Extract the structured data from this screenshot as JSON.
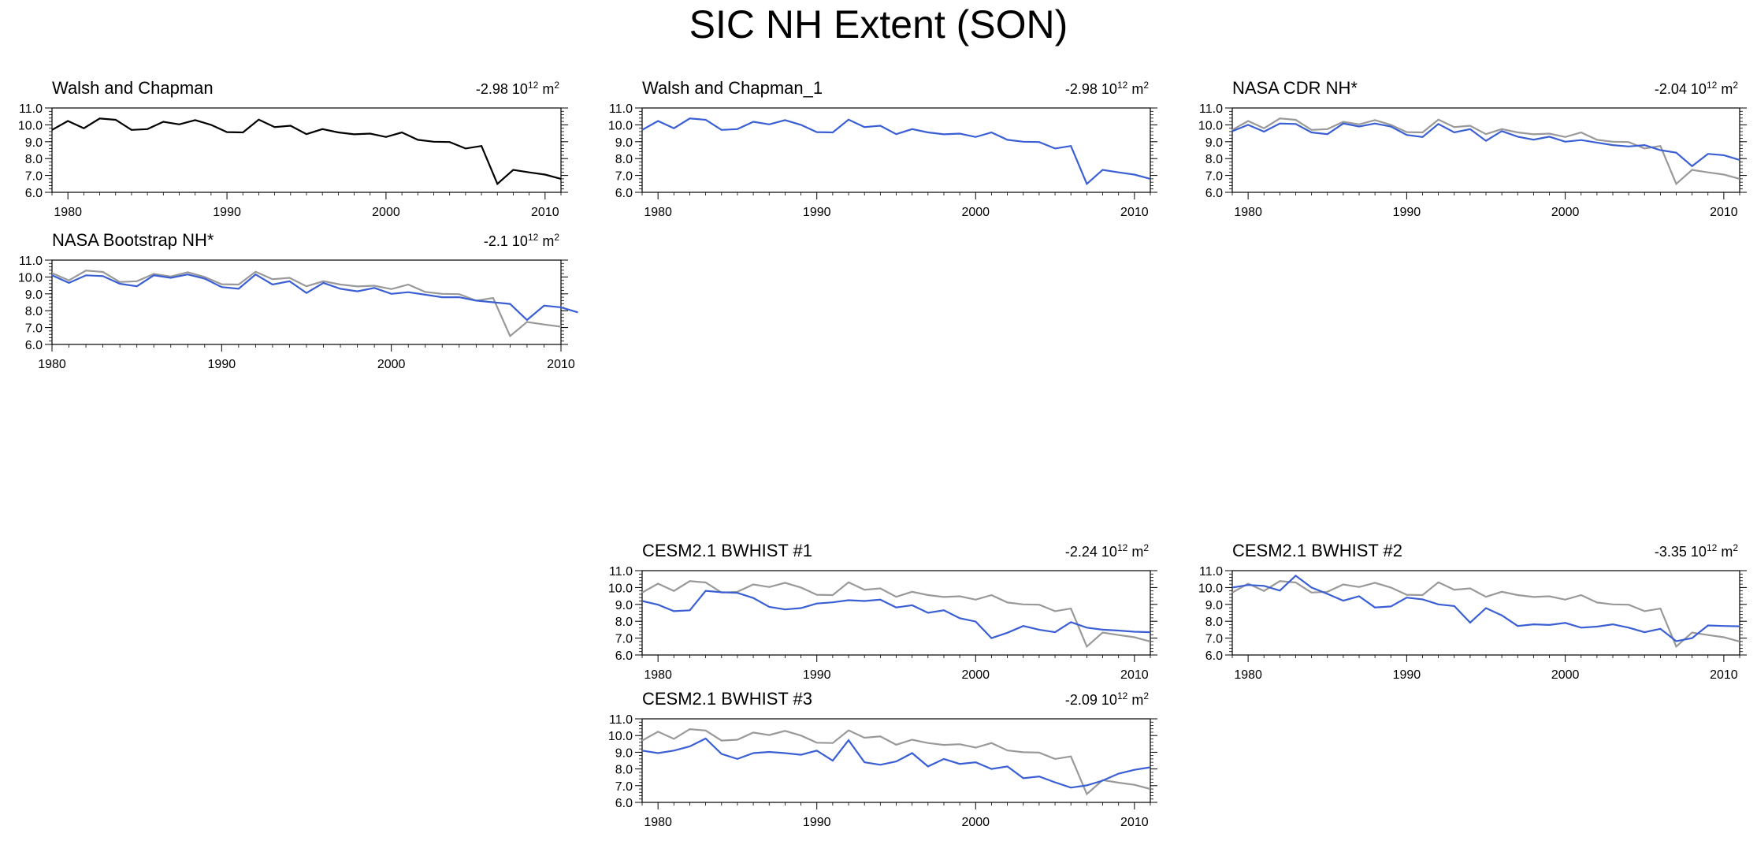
{
  "page_title": "SIC NH Extent (SON)",
  "colors": {
    "reference": "#000000",
    "observed_ref": "#999999",
    "model": "#3a5fd4"
  },
  "reference_values": [
    9.7,
    10.23,
    9.8,
    10.38,
    10.3,
    9.7,
    9.75,
    10.18,
    10.03,
    10.28,
    10.0,
    9.57,
    9.55,
    10.31,
    9.87,
    9.95,
    9.45,
    9.75,
    9.55,
    9.44,
    9.48,
    9.28,
    9.55,
    9.11,
    9.0,
    8.98,
    8.6,
    8.75,
    6.5,
    7.33,
    7.18,
    7.05,
    6.8
  ],
  "chart_data": [
    {
      "type": "line",
      "title": "Walsh and Chapman",
      "slope_value": "-2.98",
      "slope_unit_base": "10",
      "slope_exp": "12",
      "slope_unit": "m",
      "slope_unit_exp": "2",
      "x_start": 1979,
      "xlim": [
        1979,
        2011
      ],
      "ylim": [
        6.0,
        11.0
      ],
      "yticks": [
        "6.0",
        "7.0",
        "8.0",
        "9.0",
        "10.0",
        "11.0"
      ],
      "xticks": [
        "1980",
        "1990",
        "2000",
        "2010"
      ],
      "line_color": "#000000",
      "show_reference": false,
      "values_ref": "reference"
    },
    {
      "type": "line",
      "title": "Walsh and Chapman_1",
      "slope_value": "-2.98",
      "slope_unit_base": "10",
      "slope_exp": "12",
      "slope_unit": "m",
      "slope_unit_exp": "2",
      "x_start": 1979,
      "xlim": [
        1979,
        2011
      ],
      "ylim": [
        6.0,
        11.0
      ],
      "yticks": [
        "6.0",
        "7.0",
        "8.0",
        "9.0",
        "10.0",
        "11.0"
      ],
      "xticks": [
        "1980",
        "1990",
        "2000",
        "2010"
      ],
      "line_color": "#3a5fd4",
      "show_reference": false,
      "values_ref": "reference"
    },
    {
      "type": "line",
      "title": "NASA CDR NH*",
      "slope_value": "-2.04",
      "slope_unit_base": "10",
      "slope_exp": "12",
      "slope_unit": "m",
      "slope_unit_exp": "2",
      "x_start": 1979,
      "xlim": [
        1979,
        2011
      ],
      "ylim": [
        6.0,
        11.0
      ],
      "yticks": [
        "6.0",
        "7.0",
        "8.0",
        "9.0",
        "10.0",
        "11.0"
      ],
      "xticks": [
        "1980",
        "1990",
        "2000",
        "2010"
      ],
      "line_color": "#3a5fd4",
      "show_reference": true,
      "values": [
        9.62,
        10.0,
        9.6,
        10.08,
        10.05,
        9.55,
        9.45,
        10.08,
        9.9,
        10.08,
        9.9,
        9.4,
        9.28,
        10.05,
        9.55,
        9.75,
        9.05,
        9.63,
        9.3,
        9.12,
        9.3,
        9.0,
        9.1,
        8.95,
        8.8,
        8.72,
        8.8,
        8.5,
        8.35,
        7.55,
        8.28,
        8.2,
        7.92
      ]
    },
    {
      "type": "line",
      "title": "NASA Bootstrap NH*",
      "slope_value": "-2.1",
      "slope_unit_base": "10",
      "slope_exp": "12",
      "slope_unit": "m",
      "slope_unit_exp": "2",
      "x_start": 1980,
      "xlim": [
        1980,
        2010
      ],
      "ylim": [
        6.0,
        11.0
      ],
      "yticks": [
        "6.0",
        "7.0",
        "8.0",
        "9.0",
        "10.0",
        "11.0"
      ],
      "xticks": [
        "1980",
        "1990",
        "2000",
        "2010"
      ],
      "line_color": "#3a5fd4",
      "show_reference": true,
      "values": [
        10.1,
        9.65,
        10.1,
        10.05,
        9.6,
        9.45,
        10.1,
        9.95,
        10.15,
        9.9,
        9.4,
        9.3,
        10.15,
        9.55,
        9.75,
        9.05,
        9.65,
        9.3,
        9.15,
        9.35,
        9.0,
        9.1,
        8.95,
        8.8,
        8.8,
        8.6,
        8.5,
        8.4,
        7.45,
        8.3,
        8.2,
        7.9
      ]
    },
    {
      "type": "line",
      "title": "CESM2.1 BWHIST #1",
      "slope_value": "-2.24",
      "slope_unit_base": "10",
      "slope_exp": "12",
      "slope_unit": "m",
      "slope_unit_exp": "2",
      "x_start": 1979,
      "xlim": [
        1979,
        2011
      ],
      "ylim": [
        6.0,
        11.0
      ],
      "yticks": [
        "6.0",
        "7.0",
        "8.0",
        "9.0",
        "10.0",
        "11.0"
      ],
      "xticks": [
        "1980",
        "1990",
        "2000",
        "2010"
      ],
      "line_color": "#3a5fd4",
      "show_reference": true,
      "values": [
        9.2,
        8.98,
        8.6,
        8.65,
        9.8,
        9.72,
        9.68,
        9.38,
        8.85,
        8.7,
        8.78,
        9.05,
        9.12,
        9.25,
        9.2,
        9.28,
        8.82,
        8.95,
        8.5,
        8.65,
        8.18,
        7.98,
        7.0,
        7.32,
        7.72,
        7.5,
        7.35,
        7.95,
        7.62,
        7.5,
        7.45,
        7.38,
        7.35
      ]
    },
    {
      "type": "line",
      "title": "CESM2.1 BWHIST #2",
      "slope_value": "-3.35",
      "slope_unit_base": "10",
      "slope_exp": "12",
      "slope_unit": "m",
      "slope_unit_exp": "2",
      "x_start": 1979,
      "xlim": [
        1979,
        2011
      ],
      "ylim": [
        6.0,
        11.0
      ],
      "yticks": [
        "6.0",
        "7.0",
        "8.0",
        "9.0",
        "10.0",
        "11.0"
      ],
      "xticks": [
        "1980",
        "1990",
        "2000",
        "2010"
      ],
      "line_color": "#3a5fd4",
      "show_reference": true,
      "values": [
        10.0,
        10.15,
        10.1,
        9.82,
        10.7,
        10.0,
        9.62,
        9.22,
        9.48,
        8.82,
        8.88,
        9.4,
        9.3,
        9.0,
        8.9,
        7.92,
        8.78,
        8.35,
        7.72,
        7.82,
        7.78,
        7.9,
        7.62,
        7.68,
        7.82,
        7.62,
        7.35,
        7.55,
        6.82,
        7.0,
        7.75,
        7.72,
        7.7
      ]
    },
    {
      "type": "line",
      "title": "CESM2.1 BWHIST #3",
      "slope_value": "-2.09",
      "slope_unit_base": "10",
      "slope_exp": "12",
      "slope_unit": "m",
      "slope_unit_exp": "2",
      "x_start": 1979,
      "xlim": [
        1979,
        2011
      ],
      "ylim": [
        6.0,
        11.0
      ],
      "yticks": [
        "6.0",
        "7.0",
        "8.0",
        "9.0",
        "10.0",
        "11.0"
      ],
      "xticks": [
        "1980",
        "1990",
        "2000",
        "2010"
      ],
      "line_color": "#3a5fd4",
      "show_reference": true,
      "values": [
        9.1,
        8.95,
        9.1,
        9.35,
        9.82,
        8.9,
        8.6,
        8.95,
        9.02,
        8.95,
        8.85,
        9.1,
        8.5,
        9.72,
        8.4,
        8.25,
        8.45,
        8.95,
        8.15,
        8.6,
        8.3,
        8.4,
        8.0,
        8.15,
        7.45,
        7.55,
        7.2,
        6.88,
        7.02,
        7.3,
        7.72,
        7.95,
        8.1
      ]
    }
  ]
}
